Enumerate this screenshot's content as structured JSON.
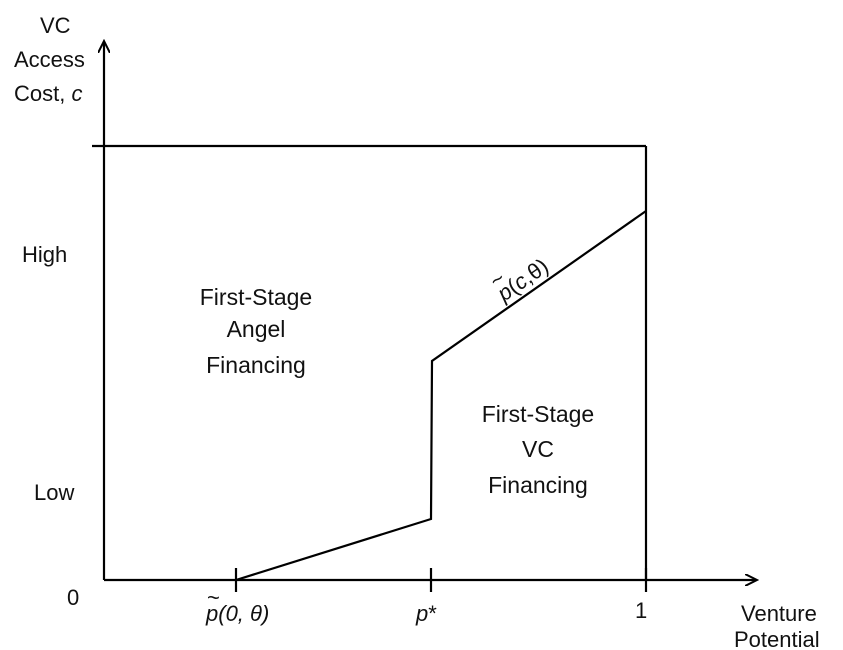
{
  "y_axis": {
    "title_lines": [
      "VC",
      "Access",
      "Cost, "
    ],
    "title_var": "c",
    "tick_labels": [
      "High",
      "Low",
      "0"
    ]
  },
  "x_axis": {
    "title_lines": [
      "Venture",
      "Potential"
    ],
    "tick_p0": {
      "tilde": "~",
      "var": "p",
      "args": "(0, θ)"
    },
    "tick_pstar": {
      "var": "p",
      "suffix": "*"
    },
    "tick_one": "1"
  },
  "regions": {
    "angel": [
      "First-Stage",
      "Angel",
      "Financing"
    ],
    "vc": [
      "First-Stage",
      "VC",
      "Financing"
    ]
  },
  "curve_label": {
    "tilde": "~",
    "var": "p",
    "open": "(",
    "c": "c",
    "rest": ",θ)"
  }
}
